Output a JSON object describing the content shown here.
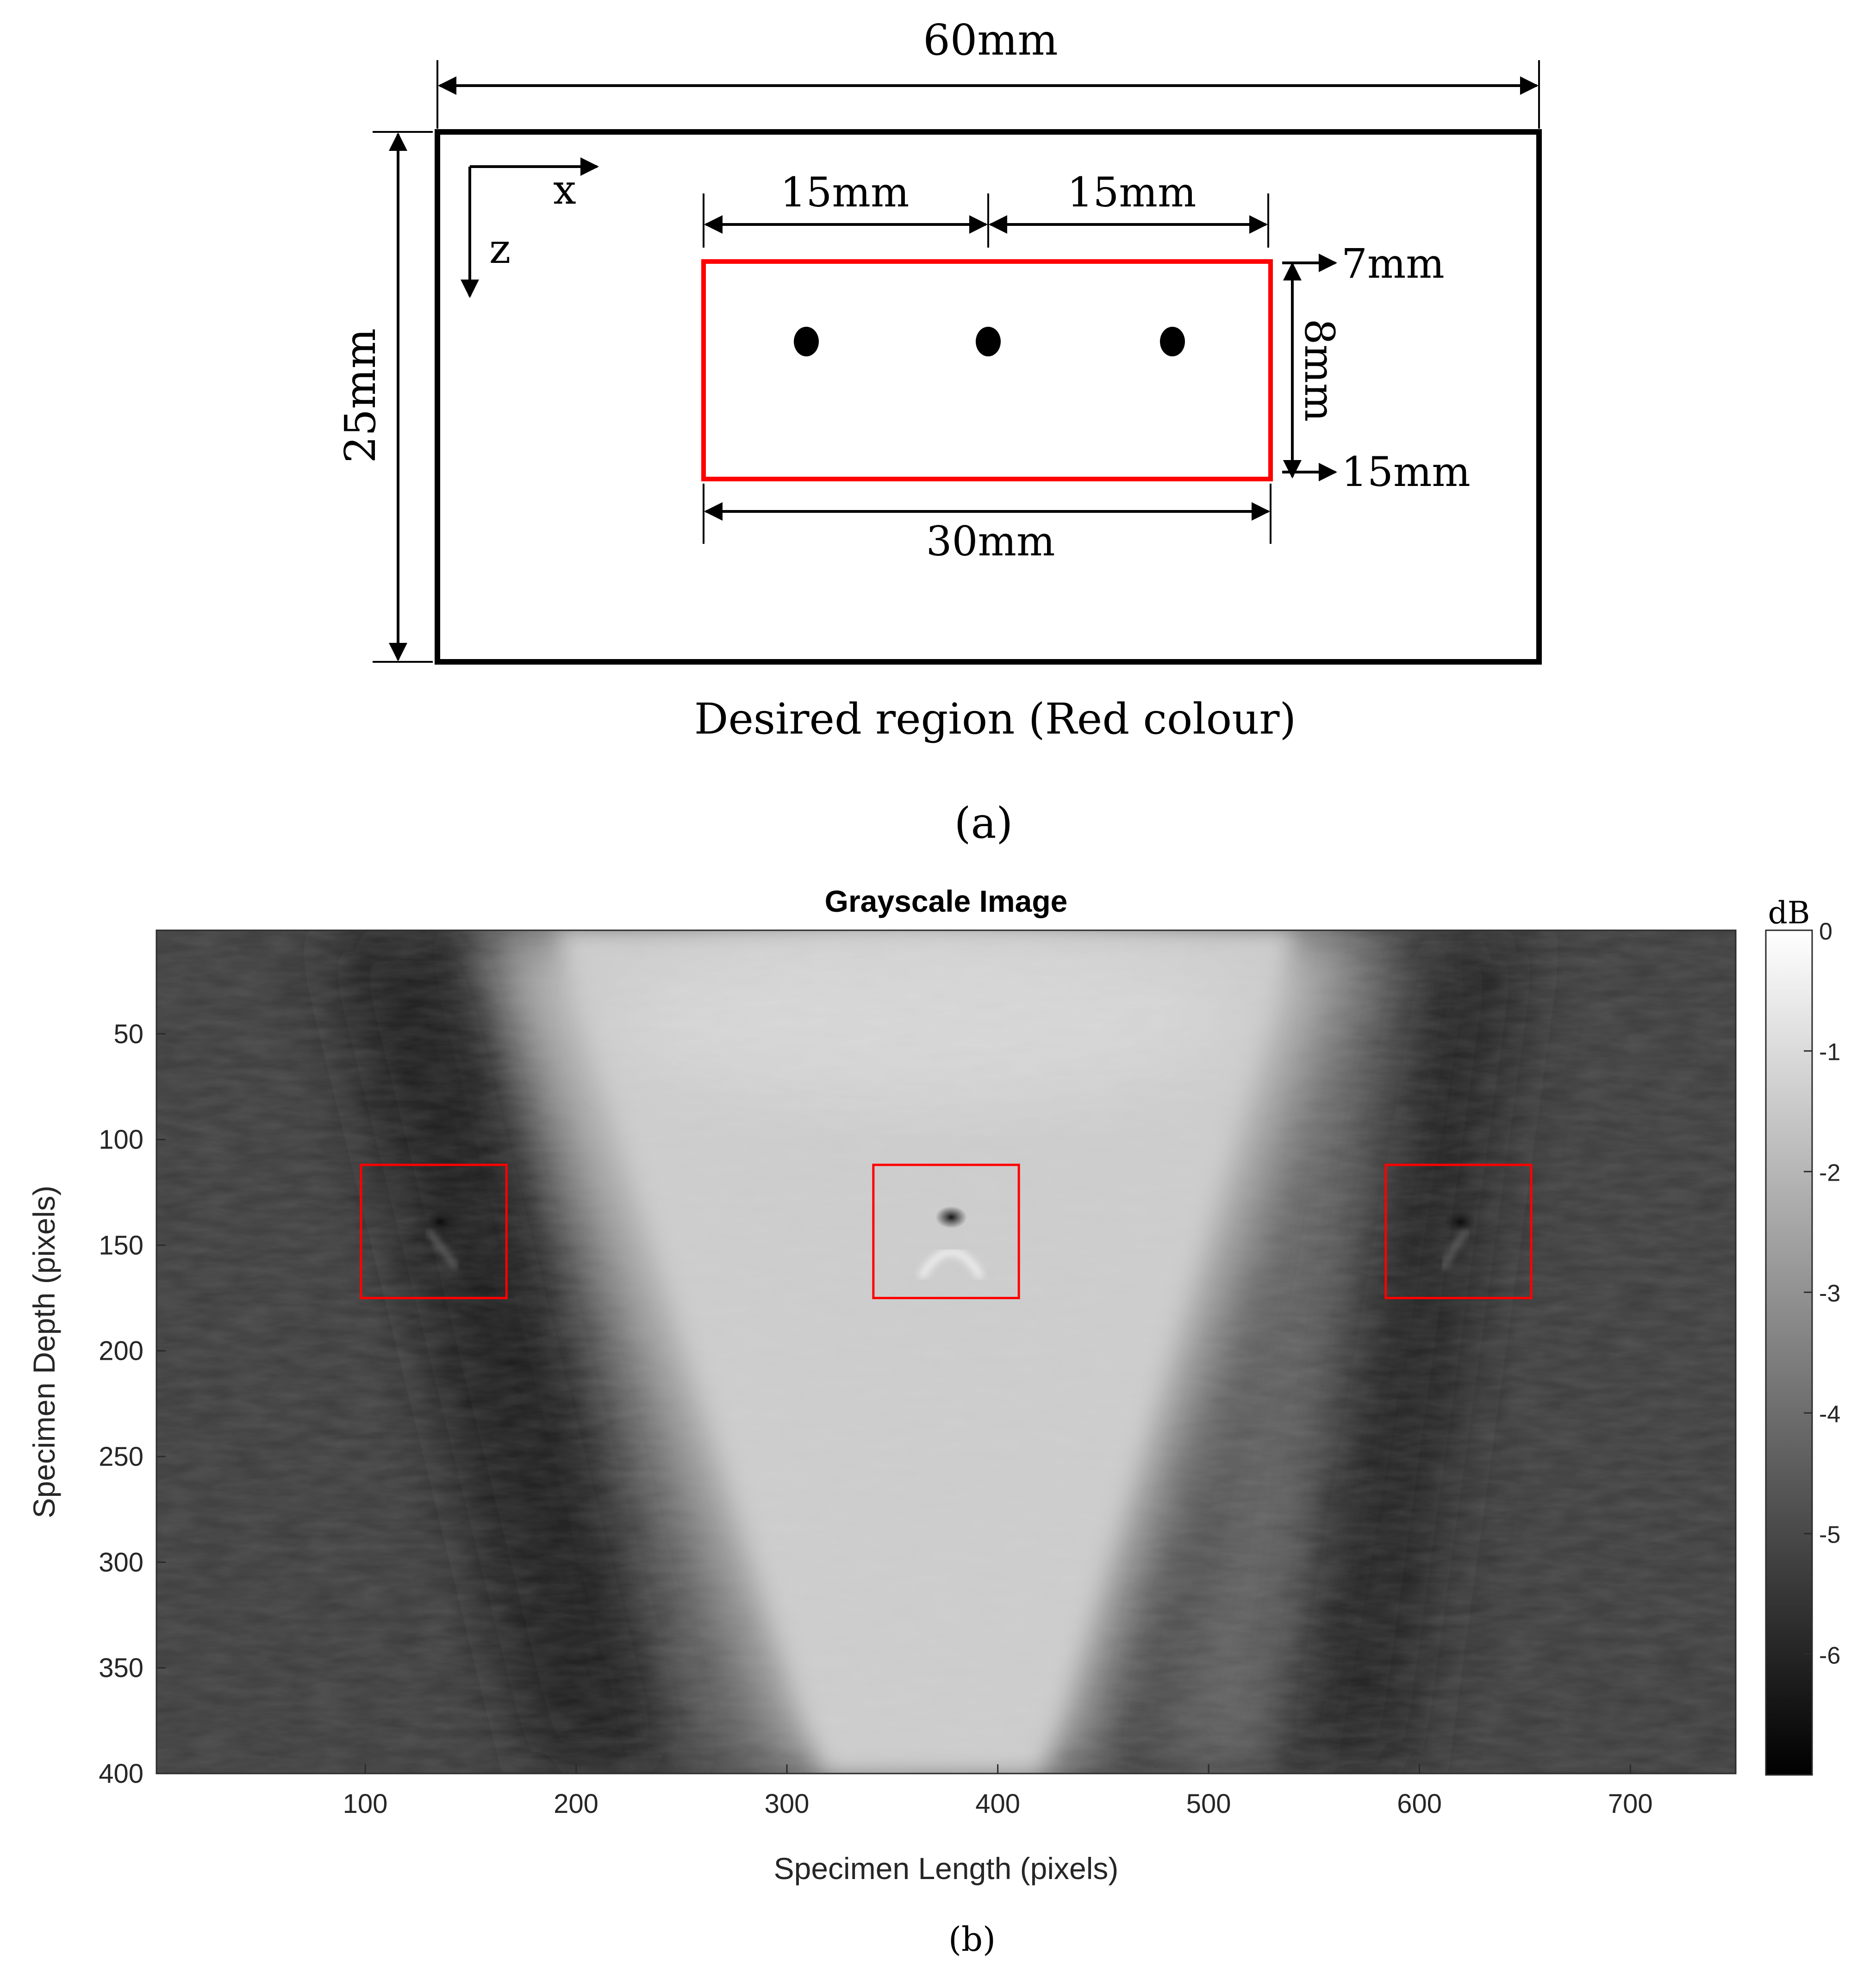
{
  "panel_a": {
    "dims": {
      "width": "60mm",
      "height": "25mm",
      "left_gap": "15mm",
      "right_gap": "15mm",
      "region_width": "30mm",
      "region_height": "8mm",
      "top_depth": "7mm",
      "bottom_depth": "15mm"
    },
    "axes": {
      "x": "x",
      "z": "z"
    },
    "region_caption": "Desired region (Red colour)",
    "label": "(a)",
    "colors": {
      "region": "#ff0000",
      "outline": "#000000"
    }
  },
  "panel_b": {
    "label": "(b)",
    "chart_data": {
      "type": "heatmap",
      "title": "Grayscale Image",
      "xlabel": "Specimen Length (pixels)",
      "ylabel": "Specimen Depth (pixels)",
      "xlim": [
        1,
        750
      ],
      "ylim": [
        1,
        400
      ],
      "y_direction": "reversed",
      "x_ticks": [
        100,
        200,
        300,
        400,
        500,
        600,
        700
      ],
      "y_ticks": [
        50,
        100,
        150,
        200,
        250,
        300,
        350,
        400
      ],
      "colorbar": {
        "label": "dB",
        "range": [
          -7,
          0
        ],
        "ticks": [
          0,
          -1,
          -2,
          -3,
          -4,
          -5,
          -6
        ],
        "colormap": "gray"
      },
      "regions_of_interest": [
        {
          "x": [
            98,
            167
          ],
          "y": [
            112,
            175
          ],
          "color": "#ff0000"
        },
        {
          "x": [
            341,
            410
          ],
          "y": [
            112,
            175
          ],
          "color": "#ff0000"
        },
        {
          "x": [
            584,
            653
          ],
          "y": [
            112,
            175
          ],
          "color": "#ff0000"
        }
      ],
      "defects": [
        {
          "x": 135,
          "y": 137
        },
        {
          "x": 377,
          "y": 137
        },
        {
          "x": 620,
          "y": 137
        }
      ]
    }
  }
}
